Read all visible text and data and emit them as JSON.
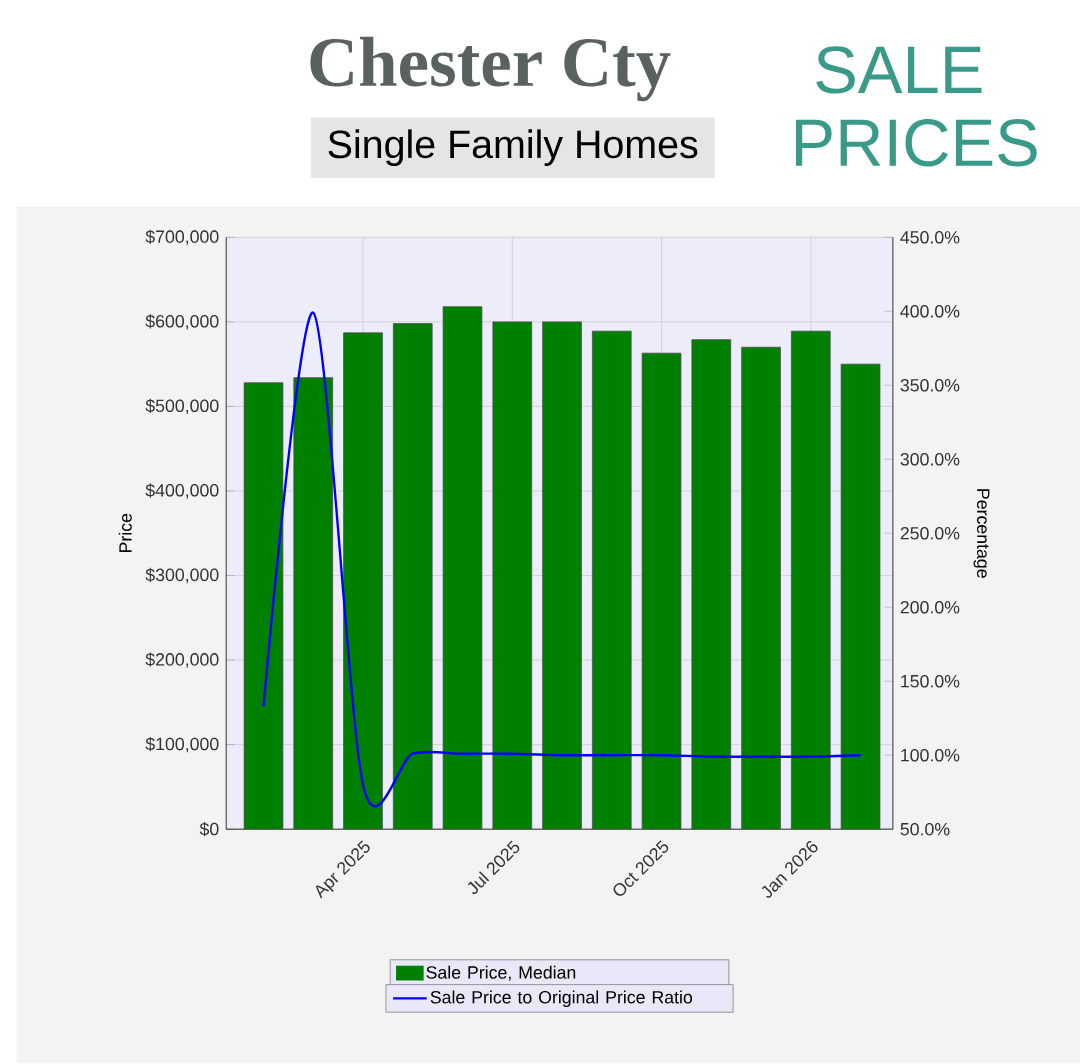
{
  "chart_data": {
    "type": "bar",
    "title": "Chester Cty",
    "subtitle": "Single Family Homes",
    "annotations": [
      "SALE PRICES"
    ],
    "ylabel": "Price",
    "y2label": "Percentage",
    "categories": [
      null,
      null,
      "Apr 2025",
      null,
      null,
      "Jul 2025",
      null,
      null,
      "Oct 2025",
      null,
      null,
      "Jan 2026",
      null
    ],
    "series": [
      {
        "name": "Sale Price, Median",
        "color": "#008000",
        "values": [
          528000,
          534000,
          587000,
          598000,
          618000,
          600000,
          600000,
          589000,
          563000,
          579000,
          570000,
          589000,
          550000
        ]
      },
      {
        "name": "Sale Price to Original Price Ratio",
        "type": "line",
        "axis": "y2",
        "color": "#0000ff",
        "values": [
          133,
          399,
          80,
          101,
          101,
          101,
          100,
          100,
          100,
          99,
          99,
          99,
          100
        ]
      }
    ],
    "ylim": [
      0,
      700000
    ],
    "yticks": [
      {
        "value": 0,
        "label": "$0"
      },
      {
        "value": 100000,
        "label": "$100,000"
      },
      {
        "value": 200000,
        "label": "$200,000"
      },
      {
        "value": 300000,
        "label": "$300,000"
      },
      {
        "value": 400000,
        "label": "$400,000"
      },
      {
        "value": 500000,
        "label": "$500,000"
      },
      {
        "value": 600000,
        "label": "$600,000"
      },
      {
        "value": 700000,
        "label": "$700,000"
      }
    ],
    "y2lim": [
      50,
      450
    ],
    "y2ticks": [
      {
        "value": 50,
        "label": "50.0%"
      },
      {
        "value": 100,
        "label": "100.0%"
      },
      {
        "value": 150,
        "label": "150.0%"
      },
      {
        "value": 200,
        "label": "200.0%"
      },
      {
        "value": 250,
        "label": "250.0%"
      },
      {
        "value": 300,
        "label": "300.0%"
      },
      {
        "value": 350,
        "label": "350.0%"
      },
      {
        "value": 400,
        "label": "400.0%"
      },
      {
        "value": 450,
        "label": "450.0%"
      }
    ],
    "grid": true,
    "legend": "bottom"
  }
}
